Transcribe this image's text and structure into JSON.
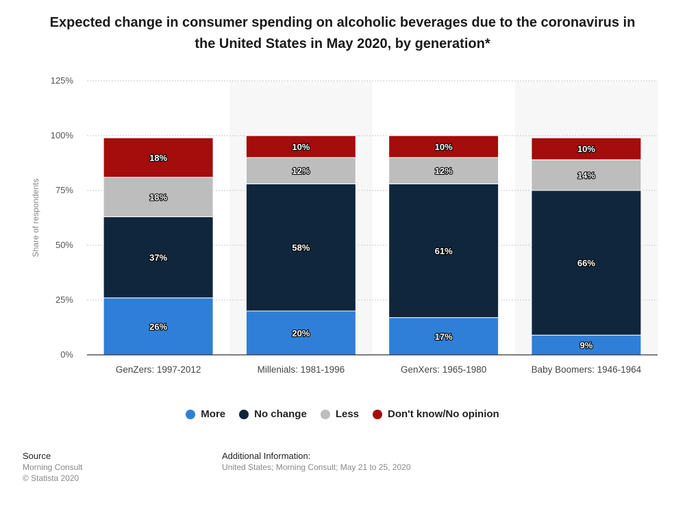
{
  "chart_data": {
    "type": "bar",
    "stacked": true,
    "title": "Expected change in consumer spending on alcoholic beverages due to the coronavirus in the United States in May 2020, by generation*",
    "xlabel": "",
    "ylabel": "Share of respondents",
    "ylim": [
      0,
      125
    ],
    "yticks": [
      0,
      25,
      50,
      75,
      100,
      125
    ],
    "ytick_labels": [
      "0%",
      "25%",
      "50%",
      "75%",
      "100%",
      "125%"
    ],
    "value_suffix": "%",
    "grid": true,
    "legend_position": "bottom",
    "categories": [
      "GenZers: 1997-2012",
      "Millenials: 1981-1996",
      "GenXers: 1965-1980",
      "Baby Boomers: 1946-1964"
    ],
    "series": [
      {
        "name": "More",
        "color": "#2f7ed8",
        "values": [
          26,
          20,
          17,
          9
        ]
      },
      {
        "name": "No change",
        "color": "#10263d",
        "values": [
          37,
          58,
          61,
          66
        ]
      },
      {
        "name": "Less",
        "color": "#bdbdbd",
        "values": [
          18,
          12,
          12,
          14
        ]
      },
      {
        "name": "Don't know/No opinion",
        "color": "#a50c0c",
        "values": [
          18,
          10,
          10,
          10
        ]
      }
    ]
  },
  "footer": {
    "source_heading": "Source",
    "source_lines": [
      "Morning Consult",
      "© Statista 2020"
    ],
    "additional_heading": "Additional Information:",
    "additional_text": "United States; Morning Consult; May 21 to 25, 2020"
  }
}
